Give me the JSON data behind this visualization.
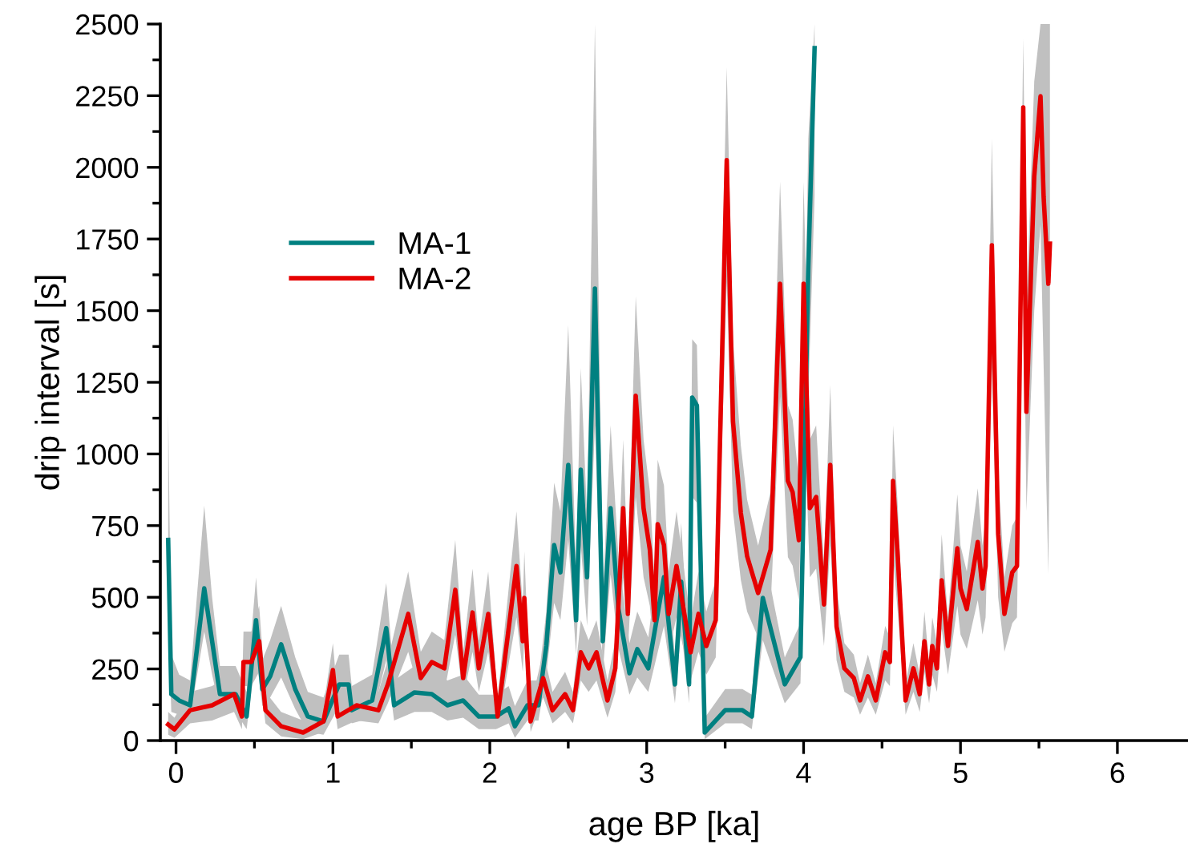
{
  "chart_data": {
    "type": "line",
    "xlabel": "age BP [ka]",
    "ylabel": "drip interval [s]",
    "xlim": [
      -0.1,
      6.45
    ],
    "xticks": [
      0,
      1,
      2,
      3,
      4,
      5,
      6
    ],
    "ylim": [
      0,
      2500
    ],
    "yticks": [
      0,
      250,
      500,
      750,
      1000,
      1250,
      1500,
      1750,
      2000,
      2250,
      2500
    ],
    "grid": false,
    "legend": "top left",
    "marker": "none",
    "line_style": "solid",
    "series": [
      {
        "name": "MA-1",
        "color": "#008080",
        "x": [
          -0.05,
          -0.03,
          0.02,
          0.09,
          0.18,
          0.23,
          0.28,
          0.38,
          0.45,
          0.51,
          0.55,
          0.6,
          0.67,
          0.76,
          0.84,
          0.94,
          1.04,
          1.1,
          1.12,
          1.25,
          1.34,
          1.39,
          1.52,
          1.63,
          1.73,
          1.83,
          1.93,
          2.04,
          2.12,
          2.16,
          2.24,
          2.31,
          2.36,
          2.41,
          2.45,
          2.5,
          2.55,
          2.58,
          2.62,
          2.67,
          2.72,
          2.77,
          2.82,
          2.89,
          2.94,
          3.01,
          3.11,
          3.18,
          3.22,
          3.27,
          3.29,
          3.32,
          3.37,
          3.5,
          3.61,
          3.67,
          3.74,
          3.81,
          3.88,
          3.98,
          4.03,
          4.07
        ],
        "values": [
          700,
          162,
          140,
          123,
          531,
          347,
          162,
          162,
          84,
          420,
          179,
          224,
          336,
          179,
          84,
          67,
          196,
          196,
          106,
          140,
          392,
          123,
          168,
          162,
          123,
          140,
          84,
          84,
          112,
          50,
          123,
          123,
          330,
          682,
          587,
          962,
          420,
          945,
          570,
          1577,
          347,
          811,
          459,
          235,
          319,
          252,
          570,
          196,
          554,
          196,
          1197,
          1169,
          28,
          106,
          106,
          84,
          498,
          347,
          196,
          291,
          1650,
          2416
        ],
        "lower": [
          450,
          100,
          90,
          80,
          380,
          230,
          110,
          100,
          40,
          300,
          120,
          150,
          220,
          110,
          30,
          20,
          120,
          120,
          60,
          80,
          280,
          70,
          100,
          100,
          70,
          80,
          40,
          40,
          60,
          10,
          70,
          70,
          230,
          480,
          420,
          700,
          300,
          680,
          400,
          1100,
          240,
          580,
          320,
          160,
          220,
          170,
          400,
          130,
          390,
          130,
          850,
          830,
          5,
          60,
          60,
          40,
          350,
          240,
          130,
          200,
          1200,
          1900
        ],
        "upper": [
          1150,
          300,
          230,
          210,
          820,
          500,
          260,
          260,
          170,
          570,
          280,
          350,
          470,
          290,
          170,
          150,
          300,
          300,
          190,
          230,
          550,
          210,
          260,
          250,
          210,
          230,
          160,
          160,
          190,
          120,
          210,
          210,
          450,
          900,
          800,
          1450,
          600,
          1300,
          780,
          2500,
          500,
          1100,
          640,
          340,
          450,
          360,
          780,
          290,
          760,
          290,
          1400,
          1380,
          80,
          180,
          180,
          160,
          680,
          480,
          290,
          410,
          2100,
          2500
        ]
      },
      {
        "name": "MA-2",
        "color": "#e60000",
        "x": [
          -0.05,
          -0.01,
          0.09,
          0.23,
          0.37,
          0.42,
          0.43,
          0.48,
          0.53,
          0.57,
          0.67,
          0.81,
          0.94,
          1.0,
          1.03,
          1.15,
          1.29,
          1.35,
          1.48,
          1.56,
          1.63,
          1.71,
          1.78,
          1.83,
          1.89,
          1.93,
          1.99,
          2.05,
          2.17,
          2.21,
          2.22,
          2.26,
          2.34,
          2.4,
          2.48,
          2.53,
          2.58,
          2.63,
          2.68,
          2.75,
          2.8,
          2.85,
          2.88,
          2.93,
          2.98,
          3.02,
          3.05,
          3.07,
          3.11,
          3.14,
          3.19,
          3.28,
          3.33,
          3.38,
          3.44,
          3.51,
          3.55,
          3.6,
          3.64,
          3.71,
          3.79,
          3.85,
          3.9,
          3.93,
          3.97,
          4.0,
          4.04,
          4.08,
          4.13,
          4.17,
          4.21,
          4.26,
          4.32,
          4.36,
          4.41,
          4.46,
          4.52,
          4.55,
          4.57,
          4.6,
          4.65,
          4.7,
          4.74,
          4.77,
          4.8,
          4.82,
          4.85,
          4.88,
          4.92,
          4.98,
          5.0,
          5.04,
          5.11,
          5.14,
          5.16,
          5.2,
          5.24,
          5.28,
          5.33,
          5.36,
          5.4,
          5.42,
          5.47,
          5.51,
          5.53,
          5.56,
          5.57
        ],
        "values": [
          56,
          39,
          106,
          123,
          162,
          84,
          274,
          274,
          347,
          106,
          50,
          28,
          67,
          246,
          84,
          123,
          106,
          196,
          442,
          218,
          274,
          252,
          526,
          218,
          447,
          252,
          442,
          84,
          609,
          347,
          498,
          67,
          218,
          106,
          162,
          106,
          308,
          252,
          308,
          140,
          252,
          811,
          442,
          1203,
          811,
          666,
          420,
          755,
          682,
          442,
          609,
          308,
          442,
          330,
          420,
          2025,
          1113,
          794,
          643,
          515,
          666,
          1594,
          906,
          867,
          699,
          1594,
          811,
          850,
          475,
          962,
          398,
          252,
          218,
          140,
          224,
          140,
          308,
          274,
          906,
          643,
          140,
          252,
          162,
          347,
          196,
          330,
          252,
          559,
          330,
          671,
          531,
          459,
          693,
          531,
          609,
          1728,
          721,
          442,
          587,
          609,
          2209,
          1147,
          1969,
          2248,
          1896,
          1594,
          1734
        ],
        "lower": [
          20,
          10,
          60,
          70,
          100,
          40,
          190,
          190,
          240,
          60,
          15,
          5,
          30,
          170,
          40,
          70,
          60,
          130,
          310,
          150,
          190,
          170,
          370,
          150,
          310,
          170,
          310,
          40,
          430,
          240,
          350,
          30,
          150,
          60,
          100,
          60,
          210,
          170,
          210,
          80,
          170,
          570,
          310,
          850,
          570,
          470,
          290,
          530,
          480,
          310,
          430,
          210,
          310,
          230,
          290,
          1600,
          800,
          560,
          450,
          360,
          470,
          1200,
          640,
          610,
          490,
          1200,
          570,
          600,
          330,
          680,
          280,
          170,
          150,
          90,
          150,
          90,
          210,
          190,
          640,
          450,
          90,
          170,
          100,
          240,
          130,
          230,
          170,
          390,
          230,
          470,
          370,
          320,
          490,
          370,
          430,
          1300,
          500,
          310,
          410,
          430,
          1800,
          800,
          1500,
          1800,
          1300,
          580,
          1200
        ],
        "upper": [
          100,
          80,
          170,
          190,
          240,
          150,
          380,
          380,
          470,
          170,
          100,
          70,
          120,
          340,
          150,
          190,
          170,
          280,
          590,
          310,
          380,
          350,
          700,
          310,
          600,
          350,
          590,
          150,
          800,
          470,
          660,
          120,
          310,
          170,
          240,
          170,
          420,
          350,
          420,
          210,
          350,
          1050,
          590,
          1550,
          1050,
          870,
          560,
          980,
          890,
          590,
          800,
          420,
          590,
          450,
          560,
          2350,
          1400,
          1030,
          840,
          680,
          870,
          1950,
          1170,
          1120,
          910,
          1950,
          1050,
          1100,
          620,
          1240,
          530,
          340,
          300,
          200,
          300,
          200,
          400,
          360,
          1100,
          820,
          200,
          340,
          230,
          450,
          270,
          430,
          340,
          720,
          430,
          860,
          680,
          590,
          880,
          680,
          780,
          2100,
          930,
          570,
          750,
          780,
          2450,
          1500,
          2300,
          2500,
          2500,
          2500,
          2500
        ]
      }
    ]
  }
}
